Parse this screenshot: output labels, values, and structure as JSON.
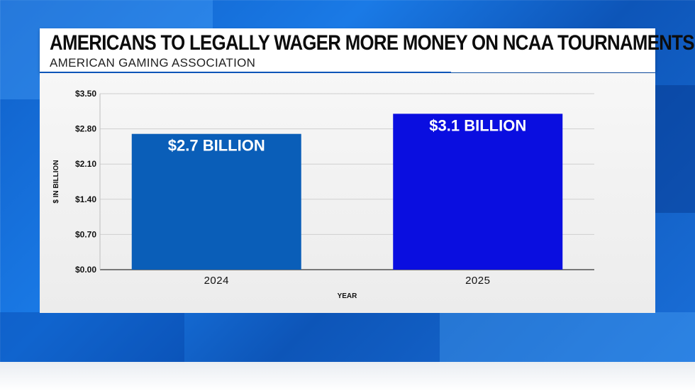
{
  "header": {
    "title": "AMERICANS TO LEGALLY WAGER MORE MONEY ON NCAA TOURNAMENTS",
    "subtitle": "AMERICAN GAMING ASSOCIATION"
  },
  "colors": {
    "background_blue": "#1a6fd8",
    "bar_2024": "#0a5eb8",
    "bar_2025": "#0a0ee0",
    "panel": "#efefef"
  },
  "chart_data": {
    "type": "bar",
    "categories": [
      "2024",
      "2025"
    ],
    "values": [
      2.7,
      3.1
    ],
    "data_labels": [
      "$2.7 BILLION",
      "$3.1 BILLION"
    ],
    "xlabel": "YEAR",
    "ylabel": "$ IN BILLION",
    "ylim": [
      0,
      3.5
    ],
    "yticks": [
      "$0.00",
      "$0.70",
      "$1.40",
      "$2.10",
      "$2.80",
      "$3.50"
    ],
    "ytick_values": [
      0,
      0.7,
      1.4,
      2.1,
      2.8,
      3.5
    ],
    "grid": true,
    "legend": "none"
  }
}
